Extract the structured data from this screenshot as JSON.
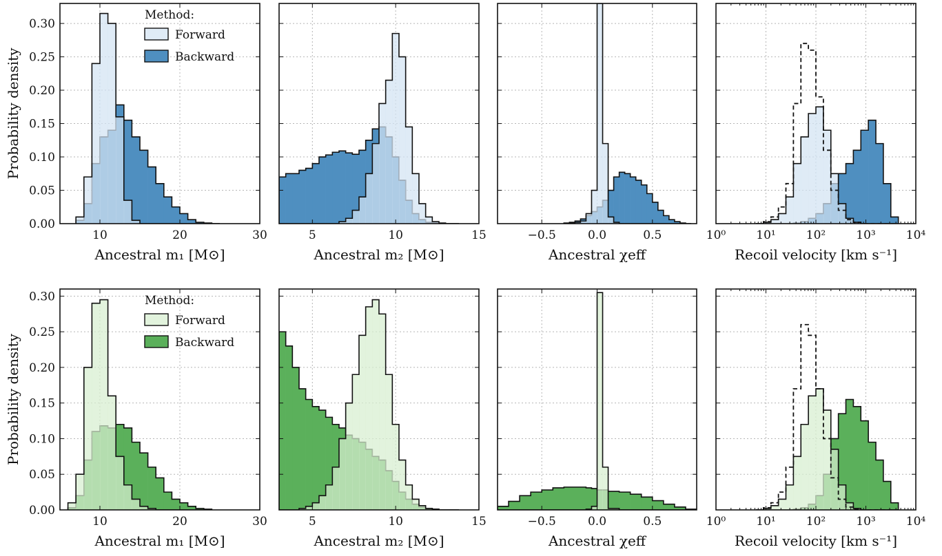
{
  "colors": {
    "blue_forward": "#d3e3f2",
    "blue_backward": "#4f8fc0",
    "green_forward": "#d7eed0",
    "green_backward": "#5bb05b",
    "outline": "#111111",
    "grid": "#b5b5b5",
    "dashed": "#111111"
  },
  "legend": {
    "title": "Method:",
    "forward": "Forward",
    "backward": "Backward"
  },
  "ylabel": "Probability density",
  "panel_xlabels": {
    "m1": "Ancestral m₁ [M⊙]",
    "m2": "Ancestral m₂ [M⊙]",
    "chi": "Ancestral χeff",
    "vel": "Recoil velocity [km s⁻¹]"
  },
  "chart_data": [
    {
      "type": "histogram",
      "row": 0,
      "palette": "blue",
      "legend": true,
      "ylabel": "Probability density",
      "xlabel": "Ancestral m₁ [M⊙]",
      "xscale": "linear",
      "xlim": [
        5,
        30
      ],
      "ylim": [
        0,
        0.33
      ],
      "xticks": [
        10,
        20,
        30
      ],
      "xticklabels": [
        "10",
        "20",
        "30"
      ],
      "yticks": [
        0,
        0.05,
        0.1,
        0.15,
        0.2,
        0.25,
        0.3
      ],
      "yticklabels": [
        "0.00",
        "0.05",
        "0.10",
        "0.15",
        "0.20",
        "0.25",
        "0.30"
      ],
      "grid": true,
      "bin_edges": [
        7,
        8,
        9,
        10,
        11,
        12,
        13,
        14,
        15,
        16,
        17,
        18,
        19,
        20,
        21,
        22,
        23,
        24,
        25
      ],
      "series": [
        {
          "name": "Forward",
          "values": [
            0.01,
            0.07,
            0.24,
            0.315,
            0.3,
            0.16,
            0.035,
            0.005,
            0,
            0,
            0,
            0,
            0,
            0,
            0,
            0,
            0,
            0
          ]
        },
        {
          "name": "Backward",
          "values": [
            0.005,
            0.03,
            0.09,
            0.13,
            0.14,
            0.178,
            0.155,
            0.13,
            0.11,
            0.085,
            0.06,
            0.04,
            0.025,
            0.015,
            0.006,
            0.002,
            0.001,
            0
          ]
        }
      ]
    },
    {
      "type": "histogram",
      "row": 0,
      "palette": "blue",
      "legend": false,
      "xlabel": "Ancestral m₂ [M⊙]",
      "xscale": "linear",
      "xlim": [
        3,
        15
      ],
      "ylim": [
        0,
        0.33
      ],
      "xticks": [
        5,
        10,
        15
      ],
      "xticklabels": [
        "5",
        "10",
        "15"
      ],
      "yticks": [
        0,
        0.05,
        0.1,
        0.15,
        0.2,
        0.25,
        0.3
      ],
      "yticklabels": [],
      "grid": true,
      "bin_edges": [
        3,
        3.4,
        3.8,
        4.2,
        4.6,
        5,
        5.4,
        5.8,
        6.2,
        6.6,
        7,
        7.4,
        7.8,
        8.2,
        8.6,
        9,
        9.4,
        9.8,
        10.2,
        10.6,
        11,
        11.4,
        11.8,
        12.2,
        12.6,
        13,
        13.4,
        13.8
      ],
      "series": [
        {
          "name": "Forward",
          "values": [
            0,
            0,
            0,
            0,
            0,
            0,
            0,
            0,
            0,
            0.003,
            0.008,
            0.02,
            0.04,
            0.075,
            0.12,
            0.18,
            0.215,
            0.285,
            0.25,
            0.145,
            0.075,
            0.03,
            0.01,
            0.003,
            0.001,
            0,
            0
          ]
        },
        {
          "name": "Backward",
          "values": [
            0.07,
            0.075,
            0.075,
            0.08,
            0.083,
            0.09,
            0.1,
            0.103,
            0.107,
            0.109,
            0.106,
            0.104,
            0.11,
            0.125,
            0.142,
            0.145,
            0.13,
            0.1,
            0.065,
            0.035,
            0.015,
            0.006,
            0.002,
            0.001,
            0,
            0,
            0
          ]
        }
      ]
    },
    {
      "type": "histogram",
      "row": 0,
      "palette": "blue",
      "legend": false,
      "xlabel": "Ancestral χeff",
      "xscale": "linear",
      "xlim": [
        -0.9,
        0.9
      ],
      "ylim": [
        0,
        0.33
      ],
      "xticks": [
        -0.5,
        0,
        0.5
      ],
      "xticklabels": [
        "−0.5",
        "0.0",
        "0.5"
      ],
      "yticks": [
        0,
        0.05,
        0.1,
        0.15,
        0.2,
        0.25,
        0.3
      ],
      "yticklabels": [],
      "grid": true,
      "bin_edges": [
        -0.3,
        -0.25,
        -0.2,
        -0.15,
        -0.1,
        -0.05,
        0,
        0.05,
        0.1,
        0.15,
        0.2,
        0.25,
        0.3,
        0.35,
        0.4,
        0.45,
        0.5,
        0.55,
        0.6,
        0.65,
        0.7,
        0.75,
        0.8,
        0.85
      ],
      "series": [
        {
          "name": "Forward",
          "values": [
            0,
            0.001,
            0.002,
            0.004,
            0.015,
            0.05,
            0.33,
            0.12,
            0.01,
            0.002,
            0,
            0,
            0,
            0,
            0,
            0,
            0,
            0,
            0,
            0,
            0,
            0,
            0
          ]
        },
        {
          "name": "Backward",
          "values": [
            0.001,
            0.002,
            0.004,
            0.007,
            0.012,
            0.018,
            0.025,
            0.035,
            0.05,
            0.07,
            0.077,
            0.075,
            0.07,
            0.065,
            0.058,
            0.045,
            0.032,
            0.02,
            0.012,
            0.006,
            0.003,
            0.001,
            0
          ]
        }
      ]
    },
    {
      "type": "histogram",
      "row": 0,
      "palette": "blue",
      "legend": false,
      "xlabel": "Recoil velocity [km s⁻¹]",
      "xscale": "log",
      "xlim": [
        1,
        10000
      ],
      "ylim": [
        0,
        0.33
      ],
      "xticks": [
        1,
        10,
        100,
        1000,
        10000
      ],
      "xticklabels": [
        "10⁰",
        "10¹",
        "10²",
        "10³",
        "10⁴"
      ],
      "yticks": [
        0,
        0.05,
        0.1,
        0.15,
        0.2,
        0.25,
        0.3
      ],
      "yticklabels": [],
      "grid": true,
      "bin_edges_log10": [
        0.8,
        0.95,
        1.1,
        1.25,
        1.4,
        1.55,
        1.7,
        1.85,
        2.0,
        2.15,
        2.3,
        2.45,
        2.6,
        2.75,
        2.9,
        3.05,
        3.2,
        3.35,
        3.5,
        3.65
      ],
      "series": [
        {
          "name": "Forward",
          "values": [
            0,
            0.002,
            0.006,
            0.015,
            0.04,
            0.09,
            0.13,
            0.165,
            0.175,
            0.14,
            0.075,
            0.03,
            0.008,
            0.002,
            0,
            0,
            0,
            0,
            0
          ]
        },
        {
          "name": "Backward",
          "values": [
            0,
            0,
            0,
            0,
            0,
            0.001,
            0.003,
            0.008,
            0.015,
            0.03,
            0.06,
            0.075,
            0.09,
            0.11,
            0.14,
            0.155,
            0.12,
            0.06,
            0.01
          ]
        },
        {
          "name": "",
          "style": "dashed",
          "values": [
            0,
            0.003,
            0.01,
            0.025,
            0.06,
            0.18,
            0.27,
            0.26,
            0.19,
            0.11,
            0.05,
            0.02,
            0.006,
            0.002,
            0,
            0,
            0,
            0,
            0
          ]
        }
      ]
    },
    {
      "type": "histogram",
      "row": 1,
      "palette": "green",
      "legend": true,
      "ylabel": "Probability density",
      "xlabel": "Ancestral m₁ [M⊙]",
      "xscale": "linear",
      "xlim": [
        5,
        30
      ],
      "ylim": [
        0,
        0.31
      ],
      "xticks": [
        10,
        20,
        30
      ],
      "xticklabels": [
        "10",
        "20",
        "30"
      ],
      "yticks": [
        0,
        0.05,
        0.1,
        0.15,
        0.2,
        0.25,
        0.3
      ],
      "yticklabels": [
        "0.00",
        "0.05",
        "0.10",
        "0.15",
        "0.20",
        "0.25",
        "0.30"
      ],
      "grid": true,
      "bin_edges": [
        6,
        7,
        8,
        9,
        10,
        11,
        12,
        13,
        14,
        15,
        16,
        17,
        18,
        19,
        20,
        21,
        22,
        23,
        24
      ],
      "series": [
        {
          "name": "Forward",
          "values": [
            0.01,
            0.05,
            0.2,
            0.29,
            0.295,
            0.16,
            0.075,
            0.035,
            0.015,
            0.005,
            0.002,
            0,
            0,
            0,
            0,
            0,
            0,
            0
          ]
        },
        {
          "name": "Backward",
          "values": [
            0.003,
            0.02,
            0.07,
            0.11,
            0.118,
            0.115,
            0.12,
            0.115,
            0.095,
            0.08,
            0.06,
            0.045,
            0.025,
            0.015,
            0.01,
            0.005,
            0.002,
            0.001
          ]
        }
      ]
    },
    {
      "type": "histogram",
      "row": 1,
      "palette": "green",
      "legend": false,
      "xlabel": "Ancestral m₂ [M⊙]",
      "xscale": "linear",
      "xlim": [
        3,
        15
      ],
      "ylim": [
        0,
        0.31
      ],
      "xticks": [
        5,
        10,
        15
      ],
      "xticklabels": [
        "5",
        "10",
        "15"
      ],
      "yticks": [
        0,
        0.05,
        0.1,
        0.15,
        0.2,
        0.25,
        0.3
      ],
      "yticklabels": [],
      "grid": true,
      "bin_edges": [
        3,
        3.4,
        3.8,
        4.2,
        4.6,
        5,
        5.4,
        5.8,
        6.2,
        6.6,
        7,
        7.4,
        7.8,
        8.2,
        8.6,
        9,
        9.4,
        9.8,
        10.2,
        10.6,
        11,
        11.4,
        11.8,
        12.2,
        12.6,
        13,
        13.4,
        13.8
      ],
      "series": [
        {
          "name": "Forward",
          "values": [
            0,
            0,
            0,
            0.002,
            0.005,
            0.01,
            0.02,
            0.035,
            0.06,
            0.1,
            0.15,
            0.19,
            0.245,
            0.285,
            0.295,
            0.275,
            0.19,
            0.12,
            0.07,
            0.035,
            0.015,
            0.006,
            0.002,
            0.001,
            0,
            0,
            0
          ]
        },
        {
          "name": "Backward",
          "values": [
            0.25,
            0.23,
            0.2,
            0.17,
            0.155,
            0.145,
            0.14,
            0.13,
            0.12,
            0.115,
            0.105,
            0.1,
            0.095,
            0.085,
            0.075,
            0.07,
            0.055,
            0.04,
            0.025,
            0.015,
            0.008,
            0.004,
            0.002,
            0.001,
            0,
            0,
            0
          ]
        }
      ]
    },
    {
      "type": "histogram",
      "row": 1,
      "palette": "green",
      "legend": false,
      "xlabel": "Ancestral χeff",
      "xscale": "linear",
      "xlim": [
        -0.9,
        0.9
      ],
      "ylim": [
        0,
        0.31
      ],
      "xticks": [
        -0.5,
        0,
        0.5
      ],
      "xticklabels": [
        "−0.5",
        "0.0",
        "0.5"
      ],
      "yticks": [
        0,
        0.05,
        0.1,
        0.15,
        0.2,
        0.25,
        0.3
      ],
      "yticklabels": [],
      "grid": true,
      "bin_edges": [
        -0.9,
        -0.8,
        -0.7,
        -0.6,
        -0.5,
        -0.4,
        -0.3,
        -0.2,
        -0.1,
        -0.05,
        0,
        0.05,
        0.1,
        0.2,
        0.3,
        0.4,
        0.5,
        0.6,
        0.7,
        0.8,
        0.9
      ],
      "series": [
        {
          "name": "Forward",
          "values": [
            0,
            0,
            0,
            0,
            0,
            0,
            0,
            0,
            0.001,
            0.005,
            0.305,
            0.06,
            0.002,
            0,
            0,
            0,
            0,
            0,
            0,
            0
          ]
        },
        {
          "name": "Backward",
          "values": [
            0.005,
            0.012,
            0.02,
            0.025,
            0.028,
            0.031,
            0.032,
            0.032,
            0.031,
            0.03,
            0.028,
            0.028,
            0.026,
            0.025,
            0.022,
            0.018,
            0.013,
            0.008,
            0.004,
            0.001
          ]
        }
      ]
    },
    {
      "type": "histogram",
      "row": 1,
      "palette": "green",
      "legend": false,
      "xlabel": "Recoil velocity [km s⁻¹]",
      "xscale": "log",
      "xlim": [
        1,
        10000
      ],
      "ylim": [
        0,
        0.31
      ],
      "xticks": [
        1,
        10,
        100,
        1000,
        10000
      ],
      "xticklabels": [
        "10⁰",
        "10¹",
        "10²",
        "10³",
        "10⁴"
      ],
      "yticks": [
        0,
        0.05,
        0.1,
        0.15,
        0.2,
        0.25,
        0.3
      ],
      "yticklabels": [],
      "grid": true,
      "bin_edges_log10": [
        0.8,
        0.95,
        1.1,
        1.25,
        1.4,
        1.55,
        1.7,
        1.85,
        2.0,
        2.15,
        2.3,
        2.45,
        2.6,
        2.75,
        2.9,
        3.05,
        3.2,
        3.35,
        3.5,
        3.65
      ],
      "series": [
        {
          "name": "Forward",
          "values": [
            0,
            0.002,
            0.006,
            0.015,
            0.035,
            0.075,
            0.12,
            0.16,
            0.17,
            0.14,
            0.085,
            0.035,
            0.01,
            0.002,
            0,
            0,
            0,
            0,
            0
          ]
        },
        {
          "name": "Backward",
          "values": [
            0,
            0,
            0,
            0,
            0,
            0.001,
            0.003,
            0.008,
            0.02,
            0.05,
            0.1,
            0.135,
            0.155,
            0.145,
            0.125,
            0.095,
            0.07,
            0.04,
            0.01
          ]
        },
        {
          "name": "",
          "style": "dashed",
          "values": [
            0,
            0.003,
            0.01,
            0.025,
            0.06,
            0.17,
            0.26,
            0.245,
            0.17,
            0.1,
            0.045,
            0.015,
            0.004,
            0.001,
            0,
            0,
            0,
            0,
            0
          ]
        }
      ]
    }
  ]
}
